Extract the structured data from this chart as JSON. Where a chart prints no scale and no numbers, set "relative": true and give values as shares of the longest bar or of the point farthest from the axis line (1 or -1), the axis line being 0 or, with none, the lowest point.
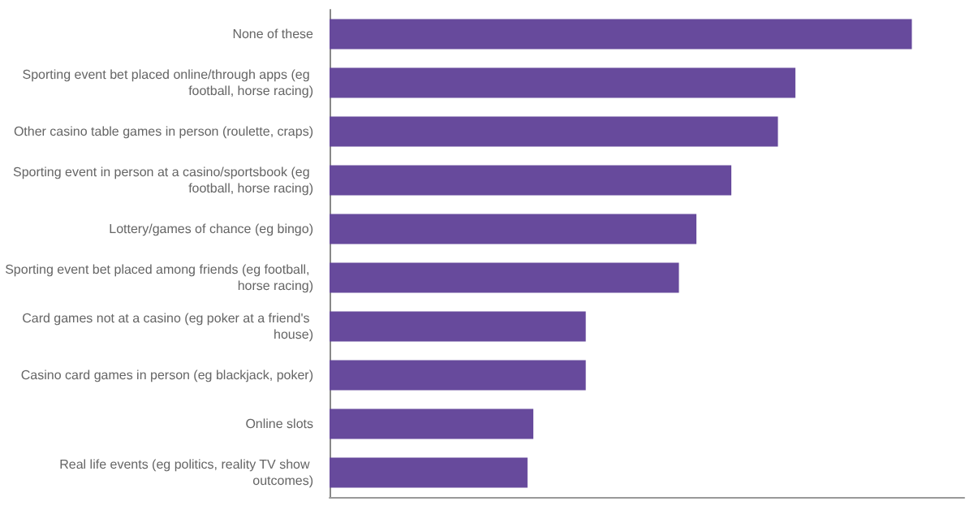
{
  "chart_data": {
    "type": "bar",
    "orientation": "horizontal",
    "relative": true,
    "color": "#674a9c",
    "grid": false,
    "categories": [
      "None of these",
      "Sporting event bet placed online/through apps (eg football, horse racing)",
      "Other casino table games in person (roulette, craps)",
      "Sporting event in person at a casino/sportsbook (eg football, horse racing)",
      "Lottery/games of chance (eg bingo)",
      "Sporting event bet placed among friends (eg football, horse racing)",
      "Card games not at a casino (eg poker at a friend's house)",
      "Casino card games in person (eg blackjack, poker)",
      "Online slots",
      "Real life events (eg politics, reality TV show outcomes)"
    ],
    "values": [
      1,
      0.8,
      0.77,
      0.69,
      0.63,
      0.6,
      0.44,
      0.44,
      0.35,
      0.34
    ]
  }
}
